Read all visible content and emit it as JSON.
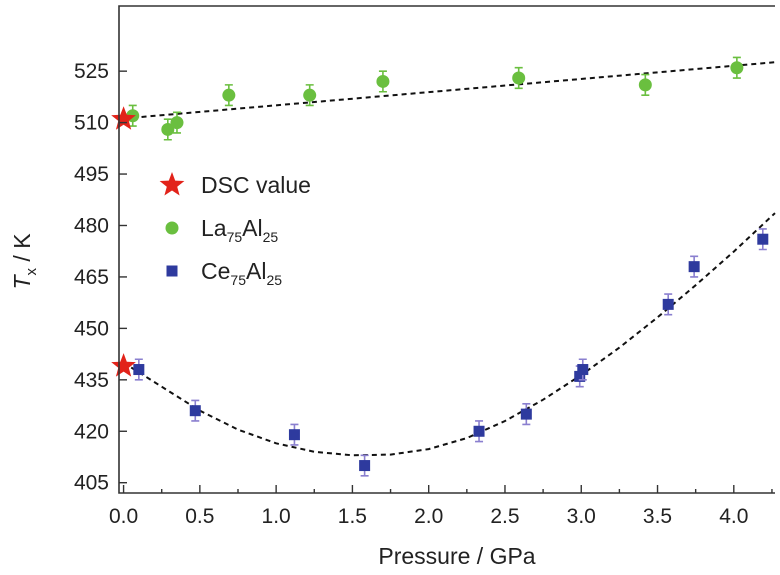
{
  "chart_data": {
    "type": "scatter",
    "xlabel": "Pressure / GPa",
    "ylabel": {
      "main": "T",
      "sub": "x",
      "unit": " / K"
    },
    "xlim": [
      -0.03,
      4.27
    ],
    "ylim": [
      402,
      544
    ],
    "x_ticks": [
      0.0,
      0.5,
      1.0,
      1.5,
      2.0,
      2.5,
      3.0,
      3.5,
      4.0
    ],
    "x_tick_labels": [
      "0.0",
      "0.5",
      "1.0",
      "1.5",
      "2.0",
      "2.5",
      "3.0",
      "3.5",
      "4.0"
    ],
    "y_ticks": [
      405,
      420,
      435,
      450,
      465,
      480,
      495,
      510,
      525
    ],
    "y_tick_labels": [
      "405",
      "420",
      "435",
      "450",
      "465",
      "480",
      "495",
      "510",
      "525"
    ],
    "grid": false,
    "legend_position": "middle-left",
    "colors": {
      "la": "#6ABF3F",
      "la_err": "#6ABF3F",
      "ce": "#2E3A9E",
      "ce_err": "#8A7FCF",
      "dsc": "#E2231A"
    },
    "series": [
      {
        "key": "la",
        "name": "La75Al25",
        "name_parts": [
          "La",
          "75",
          "Al",
          "25"
        ],
        "marker": "circle",
        "x": [
          0.06,
          0.29,
          0.35,
          0.69,
          1.22,
          1.7,
          2.59,
          3.42,
          4.02
        ],
        "y": [
          512,
          508,
          510,
          518,
          518,
          522,
          523,
          521,
          526
        ],
        "err": 3
      },
      {
        "key": "ce",
        "name": "Ce75Al25",
        "name_parts": [
          "Ce",
          "75",
          "Al",
          "25"
        ],
        "marker": "square",
        "x": [
          0.1,
          0.47,
          1.12,
          1.58,
          2.33,
          2.64,
          2.99,
          3.01,
          3.57,
          3.74,
          4.19
        ],
        "y": [
          438,
          426,
          419,
          410,
          420,
          425,
          436,
          438,
          457,
          468,
          476
        ],
        "err": 3
      },
      {
        "key": "dsc",
        "name": "DSC value",
        "marker": "star",
        "x": [
          0.0,
          0.0
        ],
        "y": [
          511,
          439
        ]
      }
    ],
    "fits": [
      {
        "series": "la",
        "style": "dashed",
        "x": [
          0.0,
          4.27
        ],
        "y": [
          511.2,
          527.6
        ]
      },
      {
        "series": "ce",
        "style": "dashed",
        "x": [
          0.0,
          0.25,
          0.5,
          0.75,
          1.0,
          1.25,
          1.5,
          1.75,
          2.0,
          2.25,
          2.5,
          2.75,
          3.0,
          3.25,
          3.5,
          3.75,
          4.0,
          4.27
        ],
        "y": [
          440,
          433,
          426,
          420.5,
          416.5,
          414,
          413,
          413.2,
          414.8,
          418,
          423,
          429.2,
          436.4,
          444.4,
          453.2,
          462.6,
          472.4,
          483.6
        ]
      }
    ],
    "legend": [
      {
        "series": "dsc",
        "label": "DSC value"
      },
      {
        "series": "la",
        "label": "La75Al25"
      },
      {
        "series": "ce",
        "label": "Ce75Al25"
      }
    ]
  }
}
